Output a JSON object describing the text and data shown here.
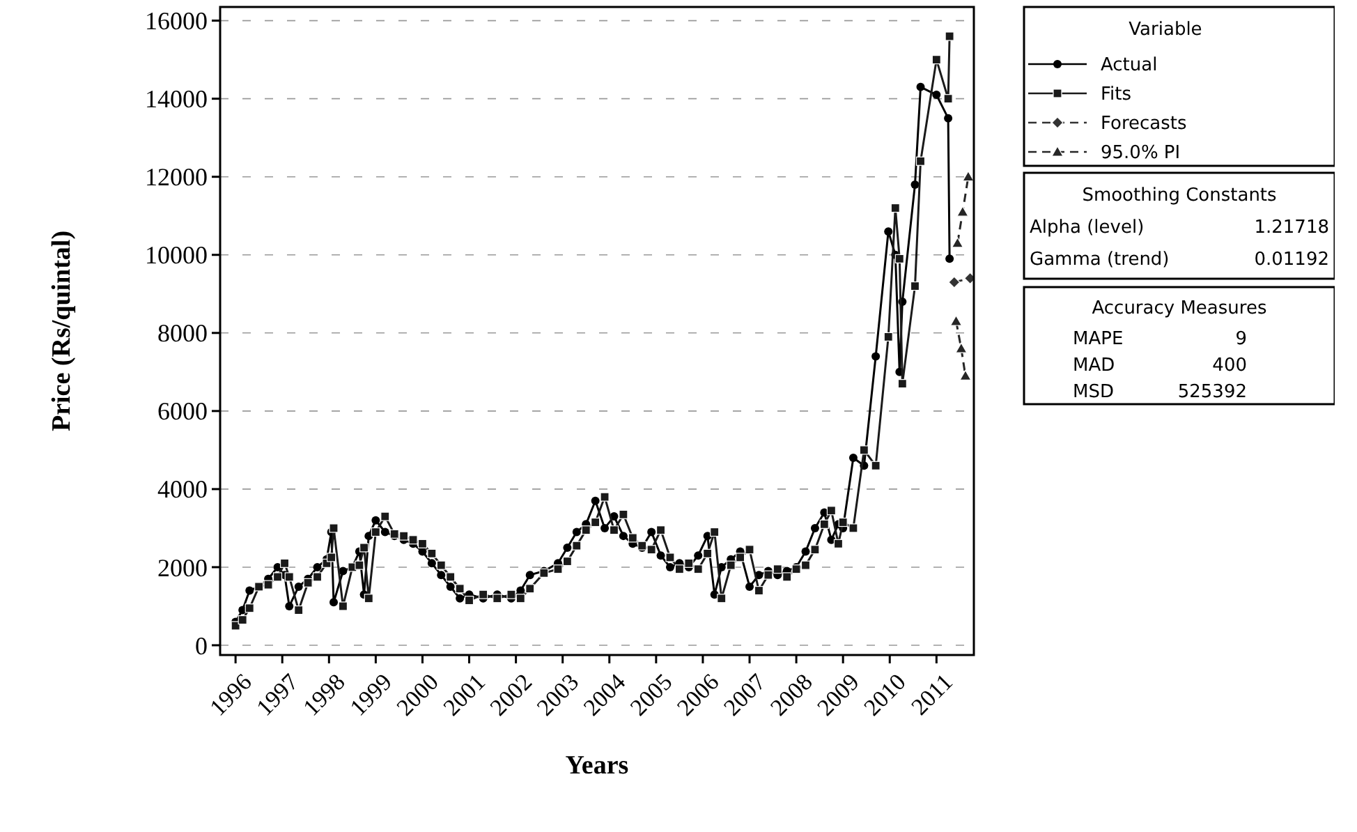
{
  "chart_data": {
    "type": "line",
    "xlabel": "Years",
    "ylabel": "Price (Rs/quintal)",
    "legend_title": "Variable",
    "legend": "right",
    "grid": "y",
    "xlim": [
      1995.67,
      2011.8
    ],
    "xticks": [
      1996,
      1997,
      1998,
      1999,
      2000,
      2001,
      2002,
      2003,
      2004,
      2005,
      2006,
      2007,
      2008,
      2009,
      2010,
      2011
    ],
    "ylim": [
      -250,
      16350
    ],
    "yticks": [
      0,
      2000,
      4000,
      6000,
      8000,
      10000,
      12000,
      14000,
      16000
    ],
    "x": [
      1996.0,
      1996.15,
      1996.3,
      1996.5,
      1996.7,
      1996.9,
      1997.05,
      1997.15,
      1997.35,
      1997.55,
      1997.75,
      1997.95,
      1998.05,
      1998.1,
      1998.3,
      1998.5,
      1998.65,
      1998.75,
      1998.85,
      1999.0,
      1999.2,
      1999.4,
      1999.6,
      1999.8,
      2000.0,
      2000.2,
      2000.4,
      2000.6,
      2000.8,
      2001.0,
      2001.3,
      2001.6,
      2001.9,
      2002.1,
      2002.3,
      2002.6,
      2002.9,
      2003.1,
      2003.3,
      2003.5,
      2003.7,
      2003.9,
      2004.1,
      2004.3,
      2004.5,
      2004.7,
      2004.9,
      2005.1,
      2005.3,
      2005.5,
      2005.7,
      2005.9,
      2006.1,
      2006.25,
      2006.4,
      2006.6,
      2006.8,
      2007.0,
      2007.2,
      2007.4,
      2007.6,
      2007.8,
      2008.0,
      2008.2,
      2008.4,
      2008.6,
      2008.75,
      2008.9,
      2009.0,
      2009.22,
      2009.45,
      2009.7,
      2009.97,
      2010.12,
      2010.21,
      2010.27,
      2010.54,
      2010.66,
      2011.0,
      2011.25,
      2011.28
    ],
    "series": [
      {
        "name": "Actual",
        "color": "#000000",
        "marker": "circle",
        "line_style": "solid",
        "values": [
          600,
          900,
          1400,
          1500,
          1700,
          2000,
          1800,
          1000,
          1500,
          1700,
          2000,
          2200,
          2900,
          1100,
          1900,
          2000,
          2400,
          1300,
          2800,
          3200,
          2900,
          2800,
          2700,
          2600,
          2400,
          2100,
          1800,
          1500,
          1200,
          1300,
          1200,
          1300,
          1200,
          1400,
          1800,
          1900,
          2100,
          2500,
          2900,
          3100,
          3700,
          3000,
          3300,
          2800,
          2600,
          2500,
          2900,
          2300,
          2000,
          2100,
          2000,
          2300,
          2800,
          1300,
          2000,
          2200,
          2400,
          1500,
          1800,
          1900,
          1800,
          1900,
          2000,
          2400,
          3000,
          3400,
          2700,
          3100,
          3000,
          4800,
          4600,
          7400,
          10600,
          10000,
          7000,
          8800,
          11800,
          14300,
          14100,
          13500,
          9900
        ]
      },
      {
        "name": "Fits",
        "color": "#1a1a1a",
        "marker": "square",
        "line_style": "solid",
        "values": [
          500,
          650,
          950,
          1500,
          1550,
          1750,
          2100,
          1750,
          900,
          1600,
          1750,
          2100,
          2250,
          3000,
          1000,
          2000,
          2050,
          2500,
          1200,
          2900,
          3300,
          2850,
          2800,
          2700,
          2600,
          2350,
          2050,
          1750,
          1450,
          1150,
          1300,
          1200,
          1300,
          1200,
          1450,
          1850,
          1950,
          2150,
          2550,
          2950,
          3150,
          3800,
          2950,
          3350,
          2750,
          2550,
          2450,
          2950,
          2250,
          1950,
          2100,
          1950,
          2350,
          2900,
          1200,
          2050,
          2250,
          2450,
          1400,
          1800,
          1950,
          1750,
          1950,
          2050,
          2450,
          3100,
          3450,
          2600,
          3150,
          3000,
          5000,
          4600,
          7900,
          11200,
          9900,
          6700,
          9200,
          12400,
          15000,
          14000,
          15600
        ]
      },
      {
        "name": "Forecasts",
        "color": "#333333",
        "marker": "diamond",
        "line_style": "dashed",
        "x": [
          2011.38,
          2011.72
        ],
        "values": [
          9300,
          9400
        ]
      },
      {
        "name": "95.0% PI",
        "color": "#262626",
        "marker": "triangle",
        "line_style": "dashed",
        "x": [
          2011.45,
          2011.56,
          2011.68
        ],
        "values": [
          10300,
          11100,
          12000
        ]
      },
      {
        "color": "#262626",
        "marker": "triangle",
        "line_style": "dashed",
        "x": [
          2011.42,
          2011.53,
          2011.62
        ],
        "values": [
          8300,
          7600,
          6900
        ]
      }
    ],
    "annotations": [
      "Smoothing Constants",
      "Alpha (level)",
      "1.21718",
      "Gamma (trend)",
      "0.01192",
      "Accuracy Measures",
      "MAPE",
      "9",
      "MAD",
      "400",
      "MSD",
      "525392"
    ]
  }
}
